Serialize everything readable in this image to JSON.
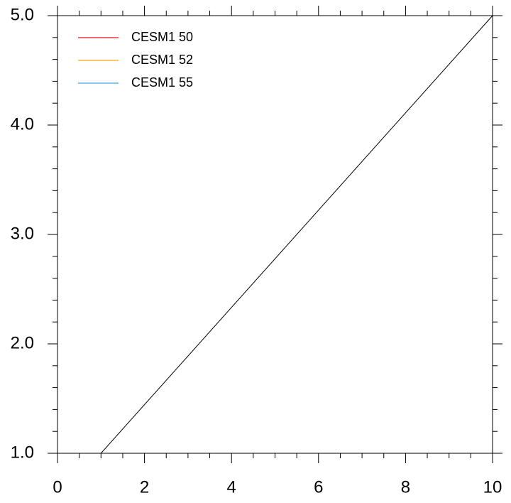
{
  "chart_data": {
    "type": "line",
    "x": [
      1,
      10
    ],
    "series": [
      {
        "name": "CESM1 50",
        "color": "#e8121b",
        "values": [
          null,
          null
        ]
      },
      {
        "name": "CESM1 52",
        "color": "#fba51a",
        "values": [
          null,
          null
        ]
      },
      {
        "name": "CESM1 55",
        "color": "#4aa6dc",
        "values": [
          null,
          null
        ]
      }
    ],
    "diagonal": {
      "x": [
        1,
        10
      ],
      "y": [
        1,
        5
      ],
      "color": "#000000"
    },
    "xlim": [
      0,
      10
    ],
    "xticks": [
      0,
      2,
      4,
      6,
      8,
      10
    ],
    "xminorticks": [
      0.5,
      1,
      1.5,
      2.5,
      3,
      3.5,
      4.5,
      5,
      5.5,
      6.5,
      7,
      7.5,
      8.5,
      9,
      9.5
    ],
    "ylim": [
      1,
      5
    ],
    "yticks": [
      {
        "value": 1,
        "label": "1.0"
      },
      {
        "value": 2,
        "label": "2.0"
      },
      {
        "value": 3,
        "label": "3.0"
      },
      {
        "value": 4,
        "label": "4.0"
      },
      {
        "value": 5,
        "label": "5.0"
      }
    ],
    "yminorticks": [
      1.2,
      1.4,
      1.6,
      1.8,
      2.2,
      2.4,
      2.6,
      2.8,
      3.2,
      3.4,
      3.6,
      3.8,
      4.2,
      4.4,
      4.6,
      4.8
    ],
    "legend": "upper left"
  }
}
